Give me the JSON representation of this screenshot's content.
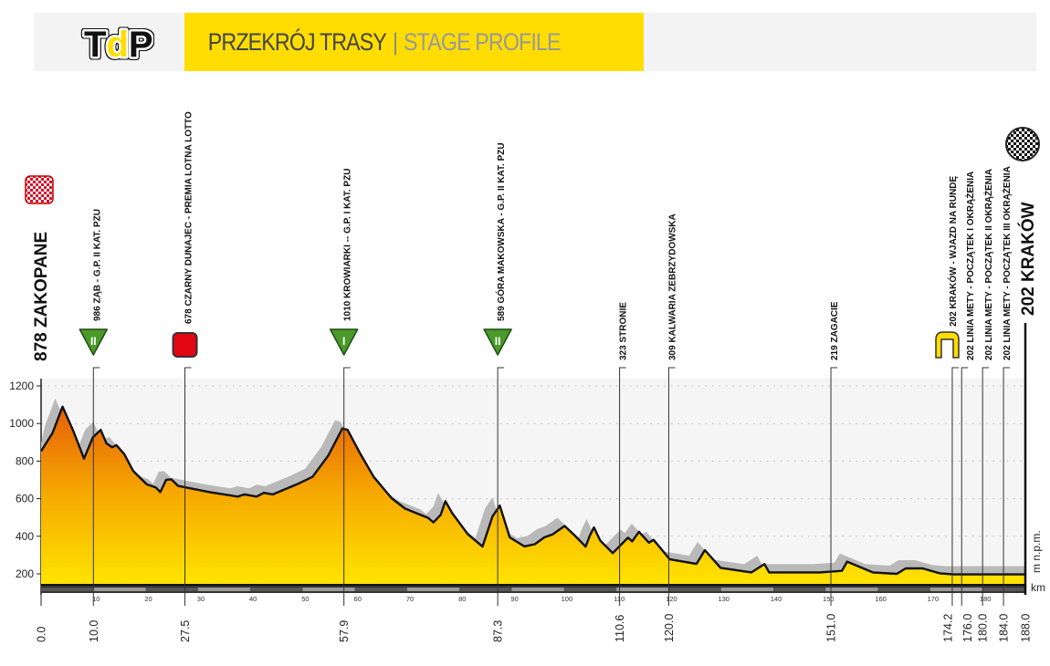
{
  "header": {
    "logo": "TdP",
    "title_pl": "PRZEKRÓJ TRASY",
    "separator": "|",
    "title_en": "STAGE PROFILE"
  },
  "colors": {
    "accent": "#ffdd00",
    "profile_top": "#e8650a",
    "profile_bottom": "#ffe000",
    "shadow": "#b8b8b8",
    "climb": "#4a9a2a",
    "sprint": "#e30613"
  },
  "chart_data": {
    "type": "area",
    "title": "PRZEKRÓJ TRASY | STAGE PROFILE",
    "xlabel": "km",
    "ylabel": "m n.p.m.",
    "xlim": [
      0,
      188
    ],
    "ylim": [
      100,
      1200
    ],
    "yticks": [
      200,
      400,
      600,
      800,
      1000,
      1200
    ],
    "xticks": [
      10,
      20,
      30,
      40,
      50,
      60,
      70,
      80,
      90,
      100,
      110,
      120,
      130,
      140,
      150,
      160,
      170,
      180
    ],
    "grid": true,
    "start": {
      "elevation": "878",
      "name": "ZAKOPANE"
    },
    "finish": {
      "elevation": "202",
      "name": "KRAKÓW"
    },
    "profile": [
      [
        0,
        853
      ],
      [
        2.2,
        950
      ],
      [
        4.1,
        1090
      ],
      [
        6.2,
        958
      ],
      [
        8.2,
        813
      ],
      [
        9.9,
        926
      ],
      [
        11.4,
        966
      ],
      [
        12.5,
        894
      ],
      [
        13.6,
        874
      ],
      [
        14.4,
        885
      ],
      [
        15.9,
        837
      ],
      [
        17.6,
        748
      ],
      [
        20.2,
        676
      ],
      [
        21.9,
        660
      ],
      [
        22.8,
        635
      ],
      [
        23.9,
        700
      ],
      [
        24.9,
        703
      ],
      [
        26.2,
        668
      ],
      [
        32.2,
        635
      ],
      [
        37.6,
        611
      ],
      [
        38.9,
        623
      ],
      [
        41.2,
        611
      ],
      [
        42.6,
        631
      ],
      [
        44.3,
        623
      ],
      [
        48.9,
        676
      ],
      [
        51.9,
        716
      ],
      [
        54.9,
        829
      ],
      [
        57.6,
        974
      ],
      [
        58.6,
        966
      ],
      [
        60.9,
        845
      ],
      [
        63.6,
        716
      ],
      [
        67,
        603
      ],
      [
        69.6,
        547
      ],
      [
        74,
        498
      ],
      [
        75,
        474
      ],
      [
        76.4,
        514
      ],
      [
        77.3,
        587
      ],
      [
        78.6,
        523
      ],
      [
        81.6,
        410
      ],
      [
        84.4,
        345
      ],
      [
        86.3,
        506
      ],
      [
        87.7,
        563
      ],
      [
        89.6,
        394
      ],
      [
        92.4,
        346
      ],
      [
        94.4,
        358
      ],
      [
        96.2,
        394
      ],
      [
        97.8,
        410
      ],
      [
        100.1,
        455
      ],
      [
        102.1,
        402
      ],
      [
        104.1,
        345
      ],
      [
        104.9,
        402
      ],
      [
        105.7,
        447
      ],
      [
        106.9,
        377
      ],
      [
        109.3,
        310
      ],
      [
        112.2,
        392
      ],
      [
        113,
        373
      ],
      [
        114.3,
        424
      ],
      [
        116.2,
        366
      ],
      [
        117.1,
        381
      ],
      [
        120.2,
        277
      ],
      [
        125.3,
        253
      ],
      [
        126.9,
        326
      ],
      [
        129.9,
        232
      ],
      [
        135.8,
        208
      ],
      [
        138.3,
        252
      ],
      [
        139.2,
        208
      ],
      [
        148.9,
        208
      ],
      [
        153.1,
        216
      ],
      [
        154.1,
        265
      ],
      [
        159,
        208
      ],
      [
        163.6,
        200
      ],
      [
        165.3,
        229
      ],
      [
        168.5,
        229
      ],
      [
        171.8,
        203
      ],
      [
        174.4,
        197
      ],
      [
        188,
        197
      ]
    ],
    "markers": [
      {
        "km": 10.0,
        "dist": "10.0",
        "label": "986 ZĄB  -  G.P. II KAT.  PZU",
        "icon": "climb",
        "cat": "II"
      },
      {
        "km": 27.5,
        "dist": "27.5",
        "label": "678 CZARNY DUNAJEC - PREMIA LOTNA LOTTO",
        "icon": "sprint",
        "cat": ""
      },
      {
        "km": 57.9,
        "dist": "57.9",
        "label": "1010 KROWIARKI --  G.P. I KAT. PZU",
        "icon": "climb",
        "cat": "I"
      },
      {
        "km": 87.3,
        "dist": "87.3",
        "label": "589 GÓRA MAKOWSKA -  G.P. II KAT. PZU",
        "icon": "climb",
        "cat": "II"
      },
      {
        "km": 110.6,
        "dist": "110.6",
        "label": "323 STRONIE",
        "icon": "none",
        "cat": ""
      },
      {
        "km": 120.0,
        "dist": "120.0",
        "label": "309 KALWARIA ZEBRZYDOWSKA",
        "icon": "none",
        "cat": ""
      },
      {
        "km": 151.0,
        "dist": "151.0",
        "label": "219 ZAGACIE",
        "icon": "none",
        "cat": ""
      },
      {
        "km": 174.2,
        "dist": "174.2",
        "label": "202 KRAKÓW  -  WJAZD NA RUNDĘ",
        "icon": "lap",
        "cat": ""
      },
      {
        "km": 176.0,
        "dist": "176.0",
        "label": "202 LINIA METY - POCZĄTEK I OKRĄŻENIA",
        "icon": "none",
        "cat": ""
      },
      {
        "km": 180.0,
        "dist": "180.0",
        "label": "202 LINIA METY - POCZĄTEK II OKRĄŻENIA",
        "icon": "none",
        "cat": ""
      },
      {
        "km": 184.0,
        "dist": "184.0",
        "label": "202 LINIA METY - POCZĄTEK III OKRĄŻENIA",
        "icon": "none",
        "cat": ""
      }
    ],
    "start_dist": "0.0",
    "finish_dist": "188.0"
  }
}
